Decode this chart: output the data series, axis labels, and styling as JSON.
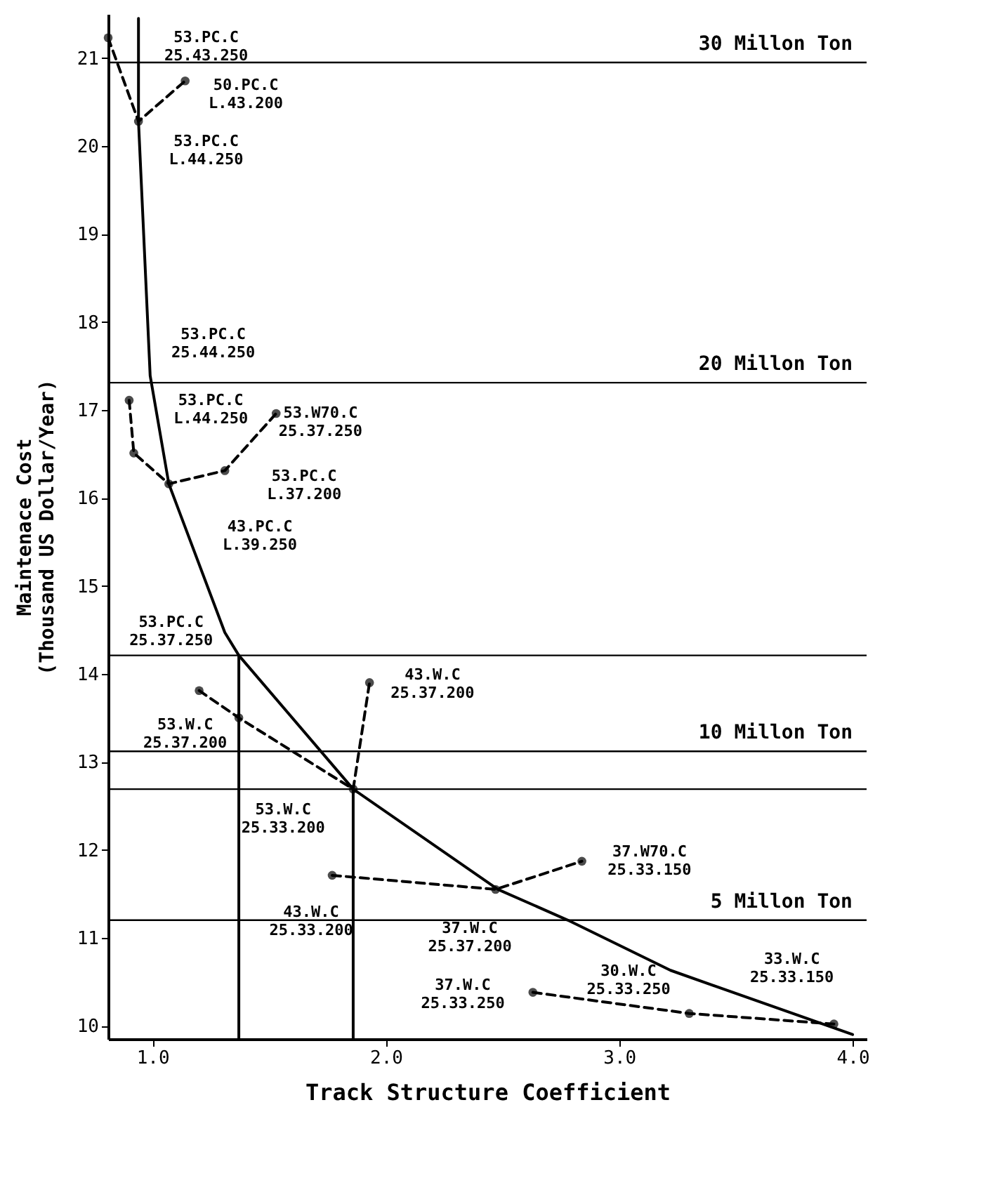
{
  "chart_data": {
    "type": "line",
    "xlabel": "Track Structure Coefficient",
    "ylabel": "Maintenace Cost\n(Thousand US Dollar/Year)",
    "xlim": [
      0.81,
      4.06
    ],
    "ylim": [
      9.85,
      21.5
    ],
    "xticks": [
      {
        "value": 1,
        "label": "1.0"
      },
      {
        "value": 2,
        "label": "2.0"
      },
      {
        "value": 3,
        "label": "3.0"
      },
      {
        "value": 4,
        "label": "4.0"
      }
    ],
    "yticks": [
      10,
      11,
      12,
      13,
      14,
      15,
      16,
      17,
      18,
      19,
      20,
      21
    ],
    "grid": false,
    "series": [
      {
        "color": "#000000",
        "line_style": "solid",
        "marker": "none",
        "x": [
          0.94,
          0.94,
          0.99,
          1.07,
          1.31,
          1.37,
          1.86,
          2.48,
          2.78,
          3.22,
          4.0
        ],
        "values": [
          21.45,
          20.28,
          17.39,
          16.16,
          14.47,
          14.21,
          12.69,
          11.55,
          11.2,
          10.63,
          9.9
        ]
      },
      {
        "color": "#000000",
        "line_style": "solid",
        "marker": "none",
        "x": [
          1.37,
          1.37
        ],
        "values": [
          14.21,
          9.85
        ]
      },
      {
        "color": "#000000",
        "line_style": "solid",
        "marker": "none",
        "x": [
          1.86,
          1.86
        ],
        "values": [
          12.69,
          9.85
        ]
      },
      {
        "color": "#000000",
        "line_style": "dashed",
        "marker": "circle",
        "x": [
          0.81,
          0.94,
          1.14
        ],
        "values": [
          21.23,
          20.28,
          20.74
        ]
      },
      {
        "color": "#000000",
        "line_style": "dashed",
        "marker": "circle",
        "x": [
          0.9,
          0.92,
          1.07,
          1.31,
          1.53
        ],
        "values": [
          17.11,
          16.51,
          16.16,
          16.31,
          16.96
        ]
      },
      {
        "color": "#000000",
        "line_style": "dashed",
        "marker": "circle",
        "x": [
          1.2,
          1.37,
          1.86,
          1.93
        ],
        "values": [
          13.81,
          13.5,
          12.69,
          13.9
        ]
      },
      {
        "color": "#000000",
        "line_style": "dashed",
        "marker": "circle",
        "x": [
          1.77,
          2.47,
          2.84
        ],
        "values": [
          11.71,
          11.55,
          11.87
        ]
      },
      {
        "color": "#000000",
        "line_style": "dashed",
        "marker": "circle",
        "x": [
          2.63,
          3.3,
          3.92
        ],
        "values": [
          10.38,
          10.14,
          10.02
        ]
      }
    ],
    "ref_lines": [
      {
        "axis": "y",
        "value": 20.95,
        "label": "30 Millon Ton"
      },
      {
        "axis": "y",
        "value": 17.31,
        "label": "20 Millon Ton"
      },
      {
        "axis": "y",
        "value": 14.21,
        "label": null
      },
      {
        "axis": "y",
        "value": 13.12,
        "label": "10 Millon Ton"
      },
      {
        "axis": "y",
        "value": 12.69,
        "label": null
      },
      {
        "axis": "y",
        "value": 11.2,
        "label": "5 Millon Ton"
      }
    ],
    "annotations": [
      "53.PC.C\n25.43.250",
      "50.PC.C\nL.43.200",
      "53.PC.C\nL.44.250",
      "53.PC.C\n25.44.250",
      "53.PC.C\nL.44.250",
      "53.W70.C\n25.37.250",
      "53.PC.C\nL.37.200",
      "43.PC.C\nL.39.250",
      "53.PC.C\n25.37.250",
      "53.W.C\n25.37.200",
      "53.W.C\n25.33.200",
      "43.W.C\n25.37.200",
      "43.W.C\n25.33.200",
      "37.W.C\n25.37.200",
      "37.W70.C\n25.33.150",
      "37.W.C\n25.33.250",
      "30.W.C\n25.33.250",
      "33.W.C\n25.33.150"
    ]
  }
}
